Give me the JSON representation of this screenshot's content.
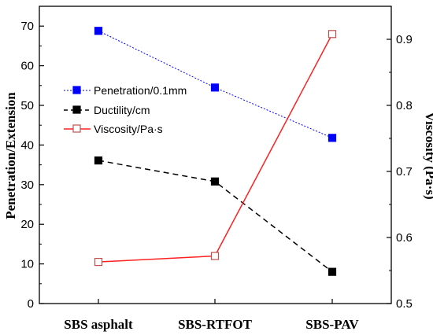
{
  "chart_data": {
    "type": "line",
    "categories": [
      "SBS asphalt",
      "SBS-RTFOT",
      "SBS-PAV"
    ],
    "ylabel_left": "Penetration/Extension",
    "ylabel_right": "Viscosity (Pa·s)",
    "ylim_left": [
      0,
      75
    ],
    "ylim_right": [
      0.5,
      0.95
    ],
    "yticks_left": [
      "0",
      "10",
      "20",
      "30",
      "40",
      "50",
      "60",
      "70"
    ],
    "yticks_right": [
      "0.5",
      "0.6",
      "0.7",
      "0.8",
      "0.9"
    ],
    "grid": false,
    "legend_position": "upper-left",
    "series": [
      {
        "name": "Penetration/0.1mm",
        "axis": "left",
        "values": [
          68.8,
          54.5,
          41.8
        ],
        "color": "#0000ff",
        "line": "dotted",
        "marker": "filled-square"
      },
      {
        "name": "Ductility/cm",
        "axis": "left",
        "values": [
          36.1,
          30.8,
          8.0
        ],
        "color": "#000000",
        "line": "dashed",
        "marker": "filled-square"
      },
      {
        "name": "Viscosity/Pa·s",
        "axis": "right",
        "values": [
          0.563,
          0.572,
          0.908
        ],
        "color": "#ff0000",
        "line": "solid",
        "marker": "open-square",
        "marker_color": "#c0504d",
        "line_color": "#ff2020"
      }
    ]
  }
}
